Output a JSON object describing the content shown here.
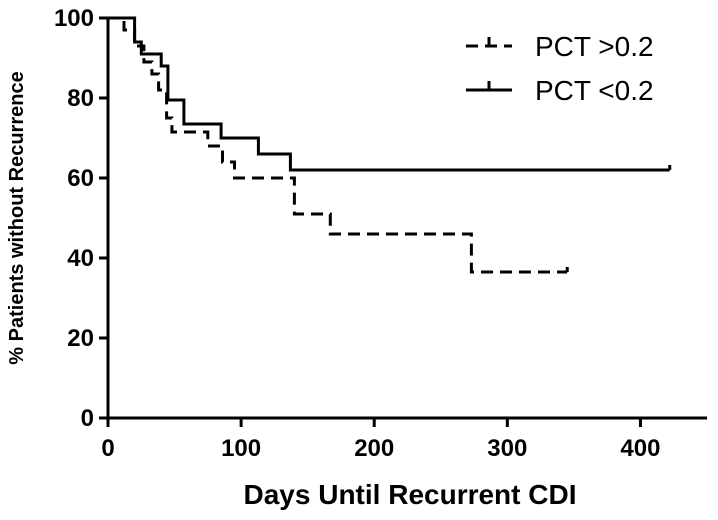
{
  "chart_data": {
    "type": "line",
    "xlabel": "Days Until Recurrent CDI",
    "ylabel": "% Patients without Recurrence",
    "xlim": [
      0,
      450
    ],
    "ylim": [
      0,
      100
    ],
    "xticks": [
      0,
      100,
      200,
      300,
      400
    ],
    "yticks": [
      0,
      20,
      40,
      60,
      80,
      100
    ],
    "grid": false,
    "legend_position": "top-right",
    "series": [
      {
        "name": "PCT >0.2",
        "line_style": "dashed",
        "color": "#000000",
        "x": [
          0,
          12,
          12,
          20,
          20,
          27,
          27,
          33,
          33,
          38,
          38,
          44,
          44,
          48,
          48,
          75,
          75,
          86,
          86,
          95,
          95,
          140,
          140,
          167,
          167,
          273,
          273,
          345
        ],
        "y": [
          100,
          100,
          97,
          97,
          93,
          93,
          89,
          89,
          86,
          86,
          82,
          82,
          75,
          75,
          71.5,
          71.5,
          68,
          68,
          64,
          64,
          60,
          60,
          51,
          51,
          46,
          46,
          36.5,
          36.5
        ]
      },
      {
        "name": "PCT <0.2",
        "line_style": "solid",
        "color": "#000000",
        "x": [
          0,
          20,
          20,
          25,
          25,
          40,
          40,
          45,
          45,
          57,
          57,
          85,
          85,
          113,
          113,
          137,
          137,
          422
        ],
        "y": [
          100,
          100,
          94,
          94,
          91,
          91,
          88,
          88,
          79.5,
          79.5,
          73.5,
          73.5,
          70,
          70,
          66,
          66,
          62,
          62
        ]
      }
    ]
  }
}
